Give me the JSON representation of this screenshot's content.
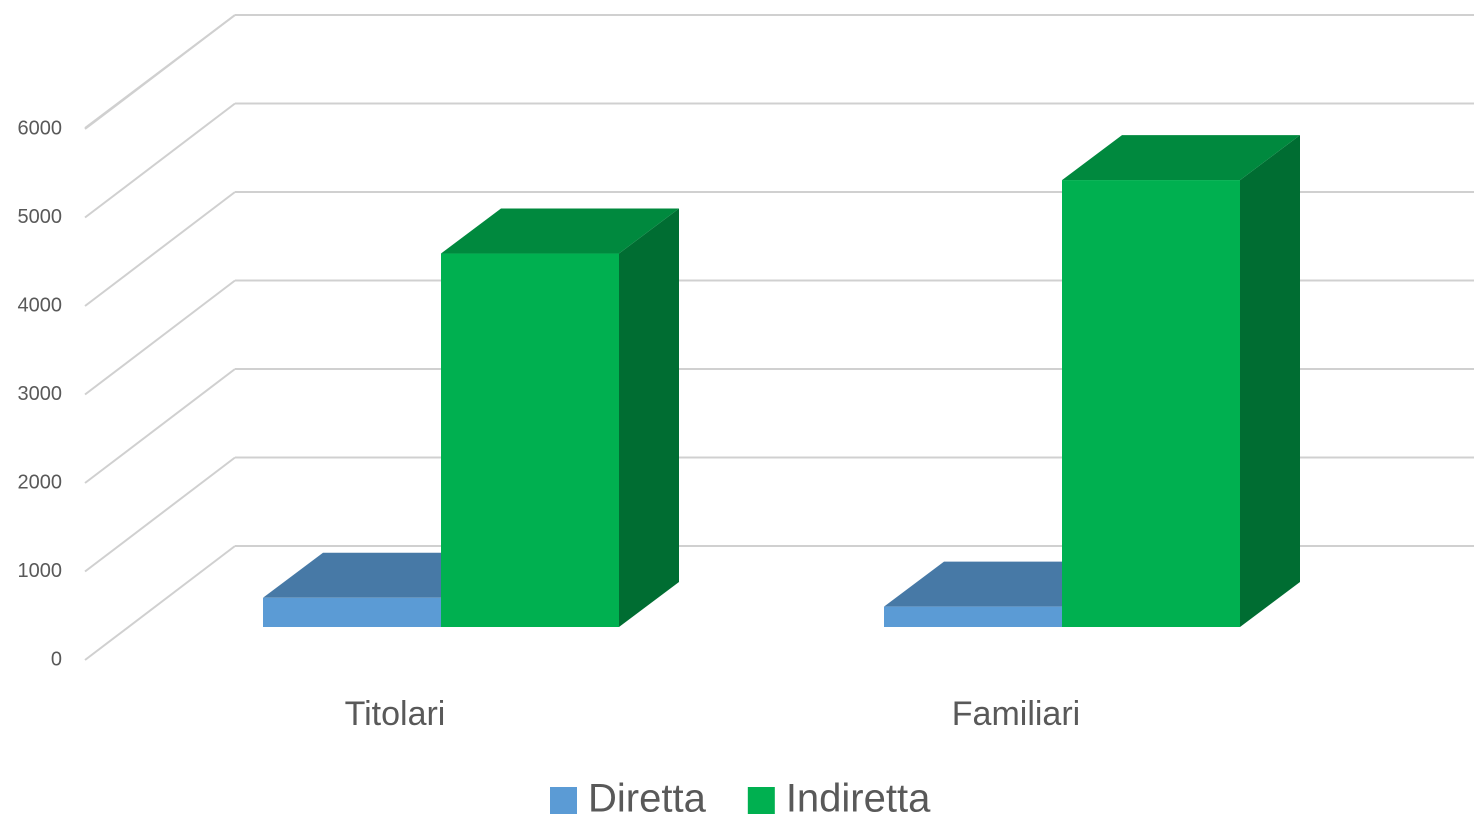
{
  "chart_data": {
    "type": "bar3d",
    "categories": [
      "Titolari",
      "Familiari"
    ],
    "series": [
      {
        "name": "Diretta",
        "color": "#5b9bd5",
        "values": [
          330,
          230
        ]
      },
      {
        "name": "Indiretta",
        "color": "#00b050",
        "values": [
          4220,
          5050
        ]
      }
    ],
    "ylim": [
      0,
      6000
    ],
    "yticks": [
      0,
      1000,
      2000,
      3000,
      4000,
      5000,
      6000
    ],
    "grid": true,
    "legend": "bottom"
  }
}
